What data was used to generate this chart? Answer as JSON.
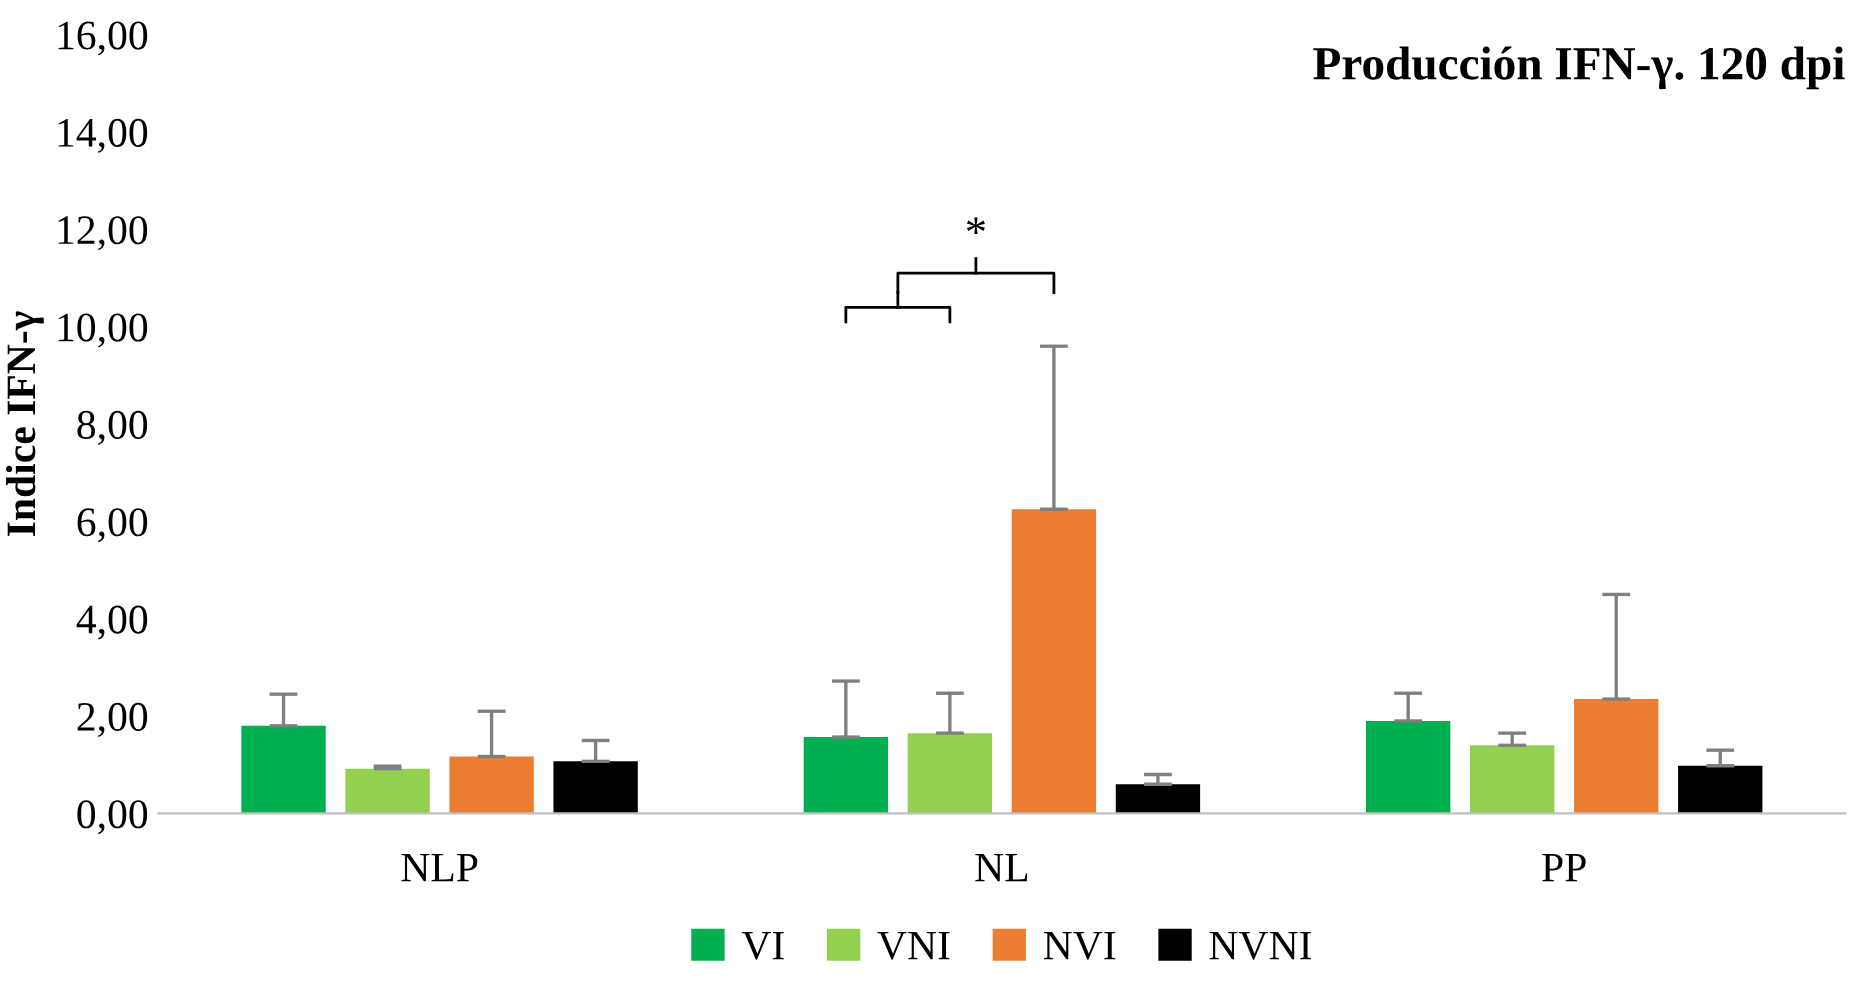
{
  "chart_data": {
    "type": "bar",
    "title": "Producción IFN-γ. 120 dpi",
    "ylabel": "Indice IFN-γ",
    "categories": [
      "NLP",
      "NL",
      "PP"
    ],
    "series": [
      {
        "name": "VI",
        "color": "#00b050",
        "values": [
          1.8,
          1.57,
          1.9
        ],
        "errors": [
          [
            1.8,
            2.45
          ],
          [
            1.57,
            2.72
          ],
          [
            1.9,
            2.47
          ]
        ]
      },
      {
        "name": "VNI",
        "color": "#92d050",
        "values": [
          0.92,
          1.65,
          1.4
        ],
        "errors": [
          [
            0.92,
            0.97
          ],
          [
            1.65,
            2.47
          ],
          [
            1.4,
            1.65
          ]
        ]
      },
      {
        "name": "NVI",
        "color": "#ed7d31",
        "values": [
          1.17,
          6.25,
          2.35
        ],
        "errors": [
          [
            1.17,
            2.1
          ],
          [
            6.25,
            9.6
          ],
          [
            2.35,
            4.5
          ]
        ]
      },
      {
        "name": "NVNI",
        "color": "#000000",
        "values": [
          1.07,
          0.6,
          0.98
        ],
        "errors": [
          [
            1.07,
            1.5
          ],
          [
            0.6,
            0.8
          ],
          [
            0.98,
            1.3
          ]
        ]
      }
    ],
    "ylim": [
      0,
      16
    ],
    "yticks": [
      {
        "value": 0,
        "label": "0,00"
      },
      {
        "value": 2,
        "label": "2,00"
      },
      {
        "value": 4,
        "label": "4,00"
      },
      {
        "value": 6,
        "label": "6,00"
      },
      {
        "value": 8,
        "label": "8,00"
      },
      {
        "value": 10,
        "label": "10,00"
      },
      {
        "value": 12,
        "label": "12,00"
      },
      {
        "value": 14,
        "label": "14,00"
      },
      {
        "value": 16,
        "label": "16,00"
      }
    ],
    "annotations": [
      "*"
    ],
    "legend": "bottom"
  }
}
